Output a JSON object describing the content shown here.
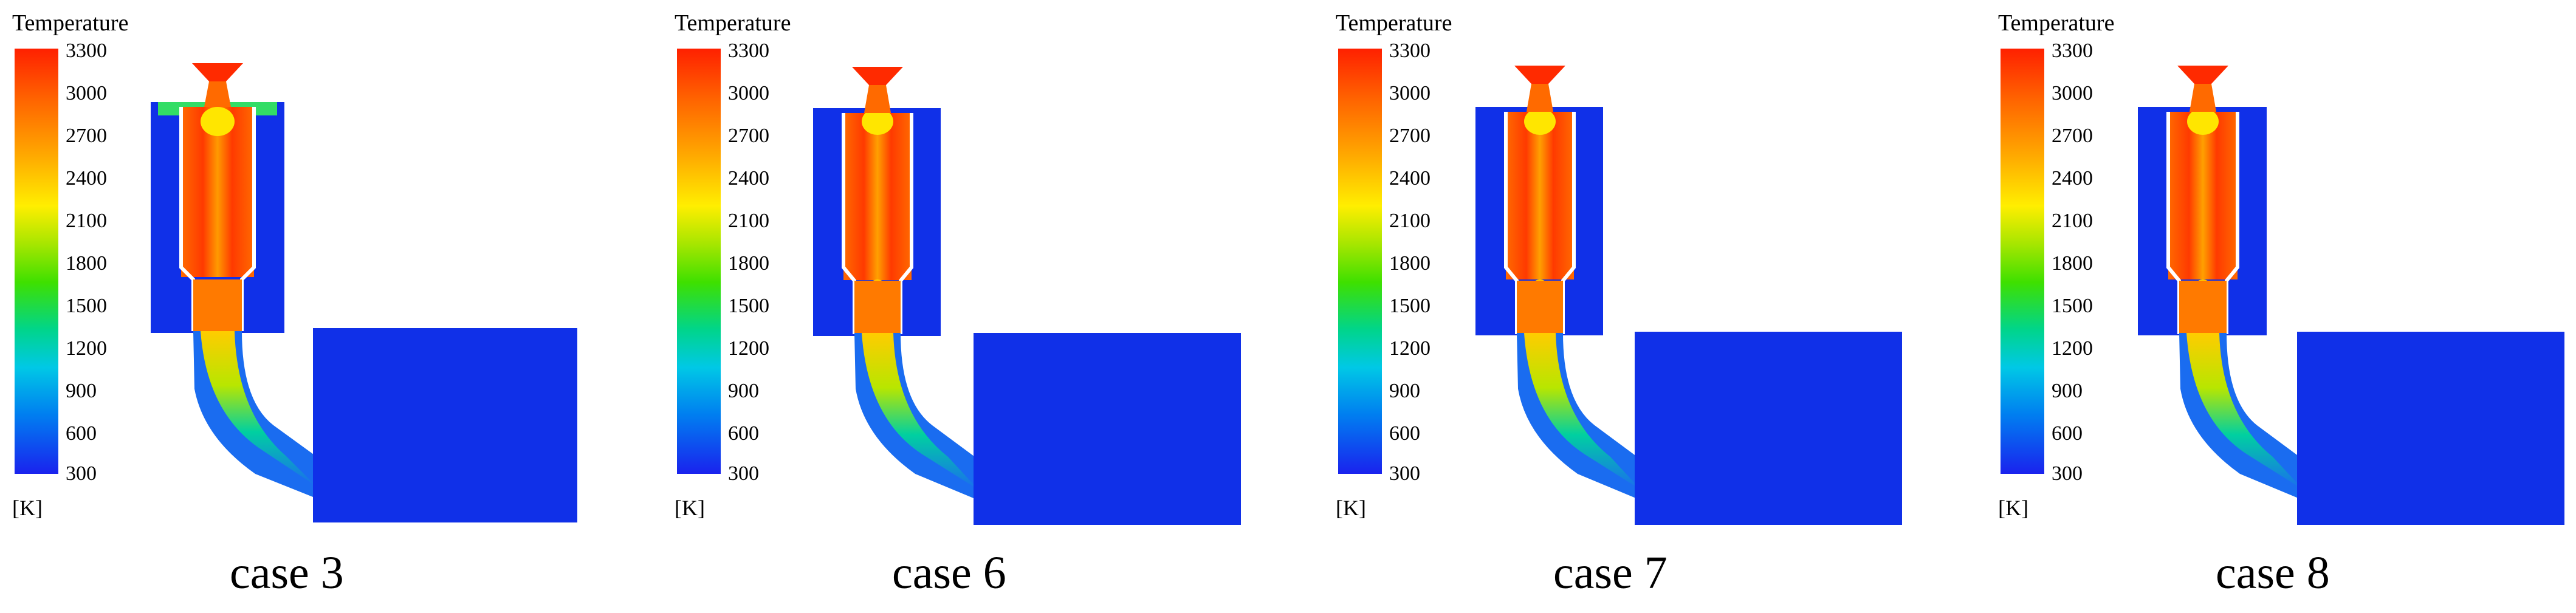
{
  "figure": {
    "legend": {
      "title": "Temperature",
      "unit": "[K]",
      "ticks": [
        "3300",
        "3000",
        "2700",
        "2400",
        "2100",
        "1800",
        "1500",
        "1200",
        "900",
        "600",
        "300"
      ]
    },
    "panels": [
      {
        "id": "case3",
        "label": "case 3"
      },
      {
        "id": "case6",
        "label": "case 6"
      },
      {
        "id": "case7",
        "label": "case 7"
      },
      {
        "id": "case8",
        "label": "case 8"
      }
    ],
    "colors": {
      "background_fluid": "#1030e8",
      "hot_core": "#ff3a00",
      "warm": "#ffd000",
      "mid": "#33dd33",
      "cool": "#00d0e0"
    }
  }
}
